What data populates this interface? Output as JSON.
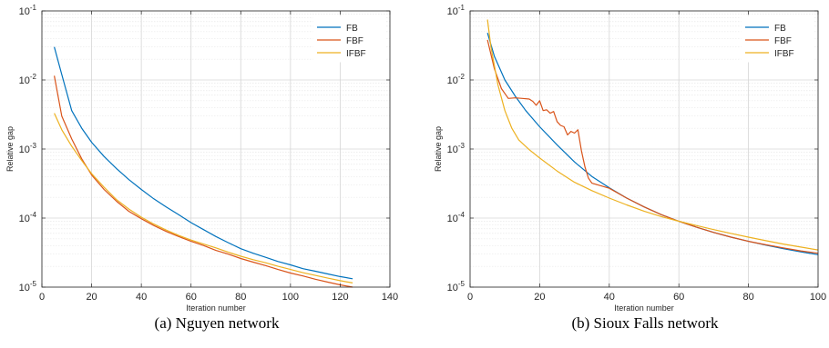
{
  "chart_data": [
    {
      "type": "line",
      "caption": "(a) Nguyen network",
      "xlabel": "Iteration number",
      "ylabel": "Relative gap",
      "yscale": "log",
      "xlim": [
        0,
        140
      ],
      "ylim": [
        1e-05,
        0.1
      ],
      "xticks": [
        0,
        20,
        40,
        60,
        80,
        100,
        120,
        140
      ],
      "yticks": [
        {
          "value": 1e-05,
          "base": "10",
          "exp": "-5"
        },
        {
          "value": 0.0001,
          "base": "10",
          "exp": "-4"
        },
        {
          "value": 0.001,
          "base": "10",
          "exp": "-3"
        },
        {
          "value": 0.01,
          "base": "10",
          "exp": "-2"
        },
        {
          "value": 0.1,
          "base": "10",
          "exp": "-1"
        }
      ],
      "grid": true,
      "legend_position": "top-right",
      "series": [
        {
          "name": "FB",
          "color": "#0072BD",
          "x": [
            5,
            8,
            12,
            16,
            20,
            25,
            30,
            35,
            40,
            45,
            50,
            55,
            60,
            65,
            70,
            75,
            80,
            85,
            90,
            95,
            100,
            105,
            110,
            115,
            120,
            125
          ],
          "y": [
            0.03,
            0.012,
            0.0036,
            0.002,
            0.00125,
            0.00078,
            0.00052,
            0.00036,
            0.00026,
            0.00019,
            0.000145,
            0.000112,
            8.6e-05,
            6.8e-05,
            5.4e-05,
            4.4e-05,
            3.6e-05,
            3.1e-05,
            2.7e-05,
            2.35e-05,
            2.1e-05,
            1.85e-05,
            1.7e-05,
            1.55e-05,
            1.42e-05,
            1.32e-05
          ]
        },
        {
          "name": "FBF",
          "color": "#D95319",
          "x": [
            5,
            8,
            12,
            16,
            20,
            25,
            30,
            35,
            40,
            45,
            50,
            55,
            60,
            65,
            70,
            75,
            80,
            85,
            90,
            95,
            100,
            105,
            110,
            115,
            120,
            125
          ],
          "y": [
            0.0115,
            0.003,
            0.0014,
            0.00072,
            0.00042,
            0.00026,
            0.000175,
            0.000125,
            9.8e-05,
            7.8e-05,
            6.4e-05,
            5.4e-05,
            4.6e-05,
            4e-05,
            3.4e-05,
            3e-05,
            2.6e-05,
            2.3e-05,
            2.05e-05,
            1.8e-05,
            1.6e-05,
            1.45e-05,
            1.3e-05,
            1.18e-05,
            1.08e-05,
            1e-05
          ]
        },
        {
          "name": "IFBF",
          "color": "#EDB120",
          "x": [
            5,
            8,
            12,
            16,
            20,
            25,
            30,
            35,
            40,
            45,
            50,
            55,
            60,
            65,
            70,
            75,
            80,
            85,
            90,
            95,
            100,
            105,
            110,
            115,
            120,
            125
          ],
          "y": [
            0.0033,
            0.0019,
            0.0011,
            0.00068,
            0.00044,
            0.00028,
            0.000185,
            0.000135,
            0.000103,
            8.2e-05,
            6.7e-05,
            5.6e-05,
            4.8e-05,
            4.2e-05,
            3.7e-05,
            3.2e-05,
            2.8e-05,
            2.5e-05,
            2.25e-05,
            2e-05,
            1.8e-05,
            1.62e-05,
            1.48e-05,
            1.35e-05,
            1.24e-05,
            1.15e-05
          ]
        }
      ]
    },
    {
      "type": "line",
      "caption": "(b) Sioux Falls network",
      "xlabel": "Iteration number",
      "ylabel": "Relative gap",
      "yscale": "log",
      "xlim": [
        0,
        100
      ],
      "ylim": [
        1e-05,
        0.1
      ],
      "xticks": [
        0,
        20,
        40,
        60,
        80,
        100
      ],
      "yticks": [
        {
          "value": 1e-05,
          "base": "10",
          "exp": "-5"
        },
        {
          "value": 0.0001,
          "base": "10",
          "exp": "-4"
        },
        {
          "value": 0.001,
          "base": "10",
          "exp": "-3"
        },
        {
          "value": 0.01,
          "base": "10",
          "exp": "-2"
        },
        {
          "value": 0.1,
          "base": "10",
          "exp": "-1"
        }
      ],
      "grid": true,
      "legend_position": "top-right",
      "series": [
        {
          "name": "FB",
          "color": "#0072BD",
          "x": [
            5,
            7,
            10,
            13,
            16,
            20,
            25,
            30,
            35,
            40,
            45,
            50,
            55,
            60,
            65,
            70,
            75,
            80,
            85,
            90,
            95,
            100
          ],
          "y": [
            0.048,
            0.022,
            0.01,
            0.0058,
            0.0036,
            0.0021,
            0.00115,
            0.00065,
            0.0004,
            0.000275,
            0.000195,
            0.000145,
            0.000112,
            9e-05,
            7.4e-05,
            6.2e-05,
            5.3e-05,
            4.6e-05,
            4.05e-05,
            3.6e-05,
            3.25e-05,
            2.95e-05
          ]
        },
        {
          "name": "FBF",
          "color": "#D95319",
          "x": [
            5,
            7,
            9,
            11,
            13,
            15,
            17,
            18,
            19,
            20,
            21,
            22,
            23,
            24,
            25,
            26,
            27,
            28,
            29,
            30,
            31,
            32,
            33,
            34,
            35,
            38,
            40,
            45,
            50,
            55,
            60,
            65,
            70,
            75,
            80,
            85,
            90,
            95,
            100
          ],
          "y": [
            0.038,
            0.0145,
            0.0075,
            0.0054,
            0.0055,
            0.0054,
            0.0053,
            0.0049,
            0.0043,
            0.005,
            0.0036,
            0.0037,
            0.0033,
            0.0035,
            0.0025,
            0.0022,
            0.0021,
            0.0016,
            0.0018,
            0.0017,
            0.0019,
            0.00095,
            0.00055,
            0.00038,
            0.00032,
            0.00029,
            0.00027,
            0.000195,
            0.000145,
            0.000112,
            9e-05,
            7.4e-05,
            6.2e-05,
            5.3e-05,
            4.6e-05,
            4.1e-05,
            3.7e-05,
            3.35e-05,
            3.1e-05
          ]
        },
        {
          "name": "IFBF",
          "color": "#EDB120",
          "x": [
            5,
            6,
            8,
            10,
            12,
            14,
            17,
            20,
            25,
            30,
            35,
            40,
            45,
            50,
            55,
            60,
            65,
            70,
            75,
            80,
            85,
            90,
            95,
            100
          ],
          "y": [
            0.075,
            0.03,
            0.0085,
            0.0036,
            0.002,
            0.00135,
            0.00098,
            0.00074,
            0.00048,
            0.00033,
            0.00025,
            0.000195,
            0.000155,
            0.000126,
            0.000105,
            9e-05,
            7.8e-05,
            6.8e-05,
            6e-05,
            5.3e-05,
            4.7e-05,
            4.2e-05,
            3.8e-05,
            3.45e-05
          ]
        }
      ]
    }
  ]
}
